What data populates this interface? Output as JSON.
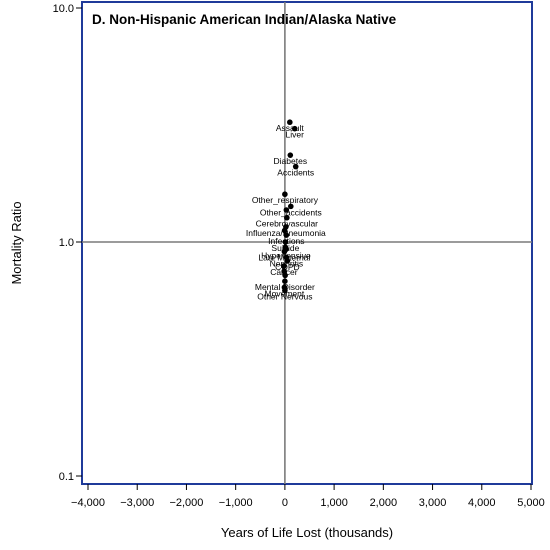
{
  "chart_data": {
    "type": "scatter",
    "title": "D. Non-Hispanic American Indian/Alaska Native",
    "xlabel": "Years of Life Lost (thousands)",
    "ylabel": "Mortality Ratio",
    "xlim": [
      -4000,
      5000
    ],
    "ylim": [
      0.1,
      10
    ],
    "yscale": "log",
    "x_ticks": [
      -4000,
      -3000,
      -2000,
      -1000,
      0,
      1000,
      2000,
      3000,
      4000,
      5000
    ],
    "x_tick_labels": [
      "−4,000",
      "−3,000",
      "−2,000",
      "−1,000",
      "0",
      "1,000",
      "2,000",
      "3,000",
      "4,000",
      "5,000"
    ],
    "y_ticks": [
      0.1,
      1.0,
      10.0
    ],
    "y_tick_labels": [
      "0.1",
      "1.0",
      "10.0"
    ],
    "reference_lines": {
      "x": 0,
      "y": 1.0
    },
    "frame_color": "#1f3a9a",
    "points": [
      {
        "label": "Assault",
        "x": 100,
        "y": 3.25
      },
      {
        "label": "Liver",
        "x": 200,
        "y": 3.05
      },
      {
        "label": "Diabetes",
        "x": 110,
        "y": 2.35
      },
      {
        "label": "Accidents",
        "x": 220,
        "y": 2.1
      },
      {
        "label": "Other_respiratory",
        "x": 0,
        "y": 1.6
      },
      {
        "label": "Other_accidents",
        "x": 120,
        "y": 1.42
      },
      {
        "label": "",
        "x": 30,
        "y": 1.37
      },
      {
        "label": "Cerebrovascular",
        "x": 40,
        "y": 1.27
      },
      {
        "label": "Influenza/Pneumonia",
        "x": 20,
        "y": 1.16
      },
      {
        "label": "Infections",
        "x": 30,
        "y": 1.07
      },
      {
        "label": "Suicide",
        "x": 10,
        "y": 1.0
      },
      {
        "label": "Hypertensive",
        "x": 20,
        "y": 0.93
      },
      {
        "label": "Late Maternal",
        "x": -10,
        "y": 0.91
      },
      {
        "label": "Nephritis",
        "x": 30,
        "y": 0.86
      },
      {
        "label": "COPD",
        "x": 50,
        "y": 0.83
      },
      {
        "label": "Cancer",
        "x": -20,
        "y": 0.79
      },
      {
        "label": "Mental Disorder",
        "x": 0,
        "y": 0.68
      },
      {
        "label": "Movement",
        "x": -10,
        "y": 0.64
      },
      {
        "label": "Other Nervous",
        "x": 0,
        "y": 0.62
      },
      {
        "label": "",
        "x": -15,
        "y": 0.75
      },
      {
        "label": "",
        "x": 10,
        "y": 0.95
      },
      {
        "label": "",
        "x": -5,
        "y": 1.12
      },
      {
        "label": "",
        "x": 5,
        "y": 0.72
      }
    ]
  }
}
